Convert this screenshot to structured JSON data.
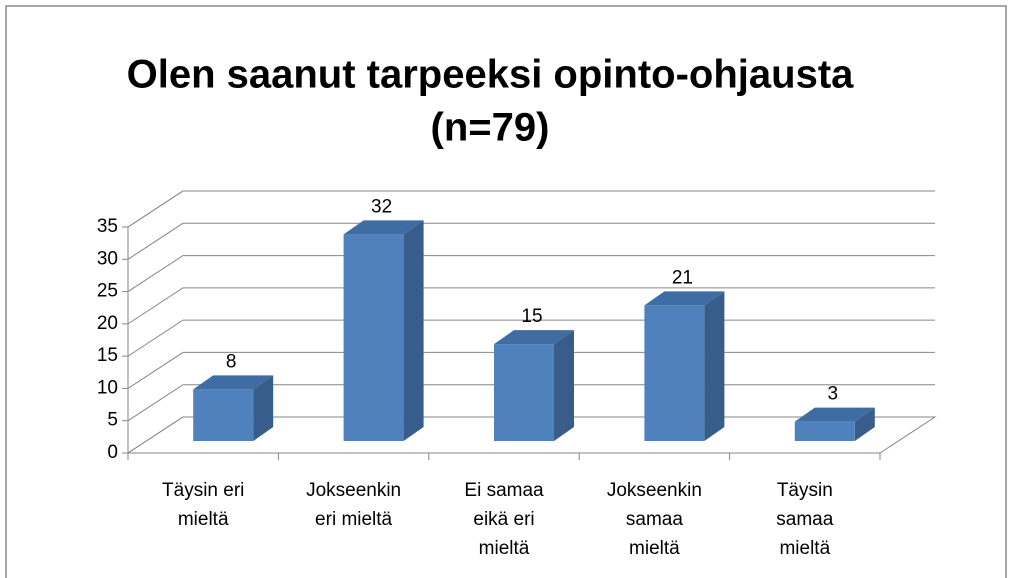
{
  "chart_data": {
    "type": "bar3d",
    "title": [
      "Olen saanut tarpeeksi opinto-ohjausta",
      "(n=79)"
    ],
    "categories": [
      [
        "Täysin eri",
        "mieltä"
      ],
      [
        "Jokseenkin",
        "eri mieltä"
      ],
      [
        "Ei samaa",
        "eikä eri",
        "mieltä"
      ],
      [
        "Jokseenkin",
        "samaa",
        "mieltä"
      ],
      [
        "Täysin",
        "samaa",
        "mieltä"
      ]
    ],
    "values": [
      8,
      32,
      15,
      21,
      3
    ],
    "color": "#4f81bd",
    "ylim": [
      0,
      35
    ],
    "yticks": [
      0,
      5,
      10,
      15,
      20,
      25,
      30,
      35
    ],
    "grid": true
  }
}
